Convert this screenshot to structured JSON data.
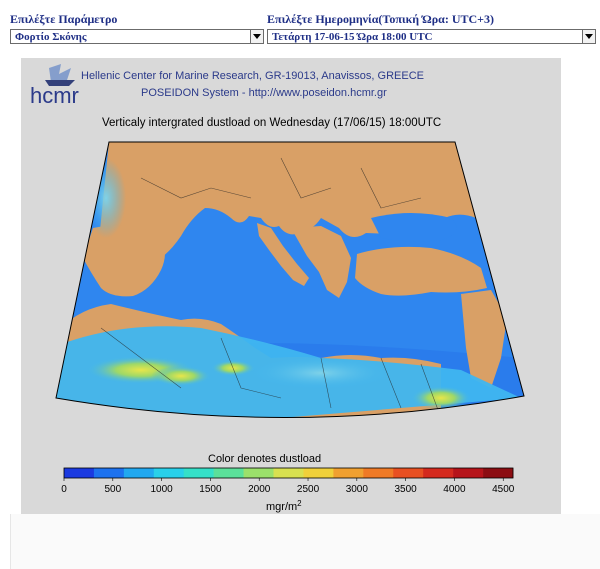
{
  "header": {
    "param_label": "Επιλέξτε Παράμετρο",
    "date_label": "Επιλέξτε Ημερομηνία(Τοπική Ώρα: UTC+3)"
  },
  "controls": {
    "param_value": "Φορτίο Σκόνης",
    "date_value": "Τετάρτη 17-06-15 Ώρα 18:00 UTC"
  },
  "map": {
    "logo_text": "hcmr",
    "line1": "Hellenic Center for Marine Research, GR-19013, Anavissos, GREECE",
    "line2": "POSEIDON System - http://www.poseidon.hcmr.gr",
    "title": "Verticaly intergrated dustload on Wednesday (17/06/15) 18:00UTC",
    "colorbar_title": "Color denotes dustload",
    "colorbar_ticks": [
      "0",
      "500",
      "1000",
      "1500",
      "2000",
      "2500",
      "3000",
      "3500",
      "4000",
      "4500"
    ],
    "units": "mgr/m",
    "units_sup": "2",
    "colors": {
      "land": "#d9a066",
      "sea": "#2f86ef",
      "dust_low": "#4cc0f0",
      "dust_mid": "#8ad66b",
      "dust_high": "#e6e04a"
    },
    "colorbar_colors": [
      "#1b3ae0",
      "#1d72ef",
      "#21a8f0",
      "#29d0ea",
      "#35e0c8",
      "#5be09a",
      "#9be06b",
      "#d8e050",
      "#f0d03a",
      "#f0a030",
      "#ef7a26",
      "#e85022",
      "#d42a1e",
      "#b6141a",
      "#8c0d12"
    ]
  }
}
